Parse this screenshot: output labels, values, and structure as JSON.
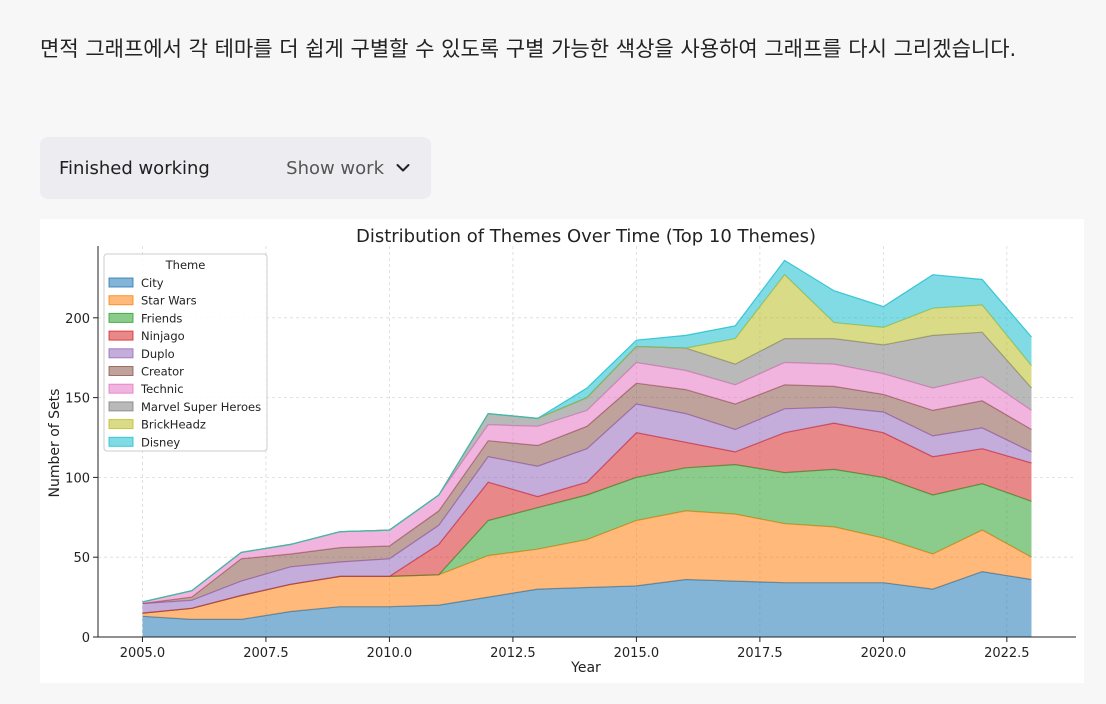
{
  "message": {
    "text": "면적 그래프에서 각 테마를 더 쉽게 구별할 수 있도록 구별 가능한 색상을 사용하여 그래프를 다시 그리겠습니다."
  },
  "status": {
    "label": "Finished working",
    "show_work_label": "Show work",
    "chevron_icon": "chevron-down-icon"
  },
  "chart_data": {
    "type": "area",
    "stacked": true,
    "title": "Distribution of Themes Over Time (Top 10 Themes)",
    "xlabel": "Year",
    "ylabel": "Number of Sets",
    "xlim": [
      2004.1,
      2023.9
    ],
    "ylim": [
      0,
      245
    ],
    "x_ticks": [
      2005.0,
      2007.5,
      2010.0,
      2012.5,
      2015.0,
      2017.5,
      2020.0,
      2022.5
    ],
    "x_tick_labels": [
      "2005.0",
      "2007.5",
      "2010.0",
      "2012.5",
      "2015.0",
      "2017.5",
      "2020.0",
      "2022.5"
    ],
    "y_ticks": [
      0,
      50,
      100,
      150,
      200
    ],
    "y_tick_labels": [
      "0",
      "50",
      "100",
      "150",
      "200"
    ],
    "grid": true,
    "legend": {
      "title": "Theme",
      "placement": "upper-left"
    },
    "x": [
      2005,
      2006,
      2007,
      2008,
      2009,
      2010,
      2011,
      2012,
      2013,
      2014,
      2015,
      2016,
      2017,
      2018,
      2019,
      2020,
      2021,
      2022,
      2023
    ],
    "series": [
      {
        "name": "City",
        "color": "#1f77b4",
        "values": [
          13,
          11,
          11,
          16,
          19,
          19,
          20,
          25,
          30,
          31,
          32,
          36,
          35,
          34,
          34,
          34,
          30,
          41,
          36
        ]
      },
      {
        "name": "Star Wars",
        "color": "#ff7f0e",
        "values": [
          2,
          7,
          15,
          17,
          19,
          19,
          19,
          26,
          25,
          30,
          41,
          43,
          42,
          37,
          35,
          28,
          22,
          26,
          14
        ]
      },
      {
        "name": "Friends",
        "color": "#2ca02c",
        "values": [
          0,
          0,
          0,
          0,
          0,
          0,
          0,
          22,
          26,
          28,
          27,
          27,
          31,
          32,
          36,
          38,
          37,
          29,
          35
        ]
      },
      {
        "name": "Ninjago",
        "color": "#d62728",
        "values": [
          0,
          0,
          0,
          0,
          0,
          0,
          19,
          24,
          7,
          8,
          28,
          16,
          8,
          25,
          29,
          28,
          24,
          22,
          24
        ]
      },
      {
        "name": "Duplo",
        "color": "#9467bd",
        "values": [
          6,
          5,
          9,
          11,
          9,
          11,
          12,
          16,
          19,
          21,
          18,
          18,
          14,
          15,
          10,
          13,
          13,
          13,
          7
        ]
      },
      {
        "name": "Creator",
        "color": "#8c564b",
        "values": [
          0,
          2,
          14,
          8,
          9,
          8,
          9,
          10,
          13,
          14,
          13,
          15,
          16,
          15,
          13,
          11,
          16,
          17,
          14
        ]
      },
      {
        "name": "Technic",
        "color": "#e377c2",
        "values": [
          1,
          4,
          4,
          6,
          10,
          10,
          10,
          10,
          12,
          10,
          13,
          12,
          12,
          14,
          14,
          13,
          14,
          15,
          12
        ]
      },
      {
        "name": "Marvel Super Heroes",
        "color": "#7f7f7f",
        "values": [
          0,
          0,
          0,
          0,
          0,
          0,
          0,
          7,
          5,
          8,
          10,
          14,
          13,
          15,
          16,
          18,
          33,
          28,
          14
        ]
      },
      {
        "name": "BrickHeadz",
        "color": "#bcbd22",
        "values": [
          0,
          0,
          0,
          0,
          0,
          0,
          0,
          0,
          0,
          0,
          0,
          0,
          16,
          40,
          10,
          11,
          17,
          17,
          14
        ]
      },
      {
        "name": "Disney",
        "color": "#17becf",
        "values": [
          0,
          0,
          0,
          0,
          0,
          0,
          0,
          0,
          0,
          6,
          4,
          8,
          8,
          9,
          20,
          13,
          21,
          16,
          18
        ]
      }
    ]
  }
}
